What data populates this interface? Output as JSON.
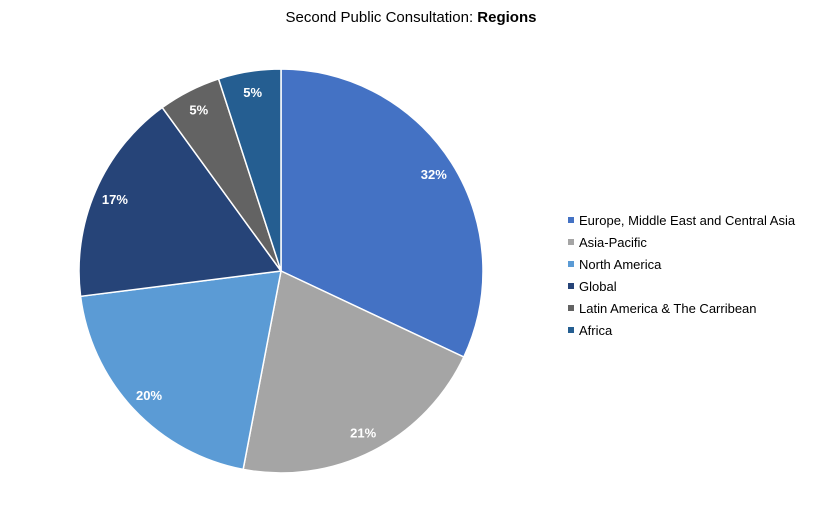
{
  "chart_data": {
    "type": "pie",
    "title_prefix": "Second Public Consultation: ",
    "title_bold": "Regions",
    "legend_position": "right",
    "start_angle_deg": 0,
    "direction": "clockwise",
    "slices": [
      {
        "label": "Europe, Middle East and Central Asia",
        "value": 32,
        "display": "32%",
        "color": "#4472C4"
      },
      {
        "label": "Asia-Pacific",
        "value": 21,
        "display": "21%",
        "color": "#A5A5A5"
      },
      {
        "label": "North America",
        "value": 20,
        "display": "20%",
        "color": "#5B9BD5"
      },
      {
        "label": "Global",
        "value": 17,
        "display": "17%",
        "color": "#264478"
      },
      {
        "label": "Latin America & The Carribean",
        "value": 5,
        "display": "5%",
        "color": "#636363"
      },
      {
        "label": "Africa",
        "value": 5,
        "display": "5%",
        "color": "#255E91"
      }
    ]
  }
}
